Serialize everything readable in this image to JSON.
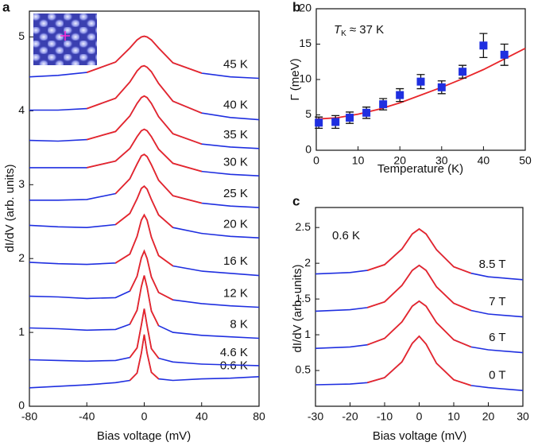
{
  "chart_data": [
    {
      "type": "line",
      "panel_label": "a",
      "xlabel": "Bias voltage (mV)",
      "ylabel": "dI/dV (arb. units)",
      "xlim": [
        -80,
        80
      ],
      "xticks": [
        -80,
        -40,
        0,
        40,
        80
      ],
      "ylim": [
        0,
        5.35
      ],
      "yticks": [
        0,
        1,
        2,
        3,
        4,
        5
      ],
      "color": "#1f2fe0",
      "fit_color": "#e8262a",
      "x": [
        -80,
        -60,
        -40,
        -20,
        -10,
        -5,
        -2,
        0,
        2,
        5,
        10,
        20,
        40,
        60,
        80
      ],
      "series": [
        {
          "name": "0.6 K",
          "values": [
            0.25,
            0.27,
            0.29,
            0.32,
            0.35,
            0.45,
            0.72,
            0.97,
            0.72,
            0.46,
            0.37,
            0.35,
            0.37,
            0.38,
            0.4
          ],
          "fit": [
            null,
            null,
            null,
            null,
            0.35,
            0.45,
            0.72,
            0.97,
            0.72,
            0.46,
            0.37,
            null,
            null,
            null,
            null
          ]
        },
        {
          "name": "4.6 K",
          "values": [
            0.63,
            0.62,
            0.61,
            0.62,
            0.66,
            0.79,
            1.1,
            1.32,
            1.09,
            0.78,
            0.65,
            0.6,
            0.57,
            0.56,
            0.55
          ],
          "fit": [
            null,
            null,
            null,
            null,
            0.66,
            0.79,
            1.1,
            1.32,
            1.09,
            0.78,
            0.65,
            null,
            null,
            null,
            null
          ]
        },
        {
          "name": "8 K",
          "values": [
            1.06,
            1.05,
            1.03,
            1.04,
            1.11,
            1.3,
            1.62,
            1.77,
            1.61,
            1.29,
            1.09,
            1.0,
            0.96,
            0.94,
            0.92
          ],
          "fit": [
            null,
            null,
            null,
            null,
            1.11,
            1.3,
            1.62,
            1.77,
            1.61,
            1.29,
            1.09,
            null,
            null,
            null,
            null
          ]
        },
        {
          "name": "12 K",
          "values": [
            1.49,
            1.48,
            1.46,
            1.47,
            1.56,
            1.76,
            2.01,
            2.1,
            2.0,
            1.75,
            1.54,
            1.44,
            1.39,
            1.36,
            1.34
          ],
          "fit": [
            null,
            null,
            null,
            null,
            1.56,
            1.76,
            2.01,
            2.1,
            2.0,
            1.75,
            1.54,
            1.44,
            null,
            null,
            null
          ]
        },
        {
          "name": "16 K",
          "values": [
            1.95,
            1.93,
            1.92,
            1.94,
            2.06,
            2.3,
            2.52,
            2.59,
            2.52,
            2.29,
            2.04,
            1.9,
            1.83,
            1.8,
            1.77
          ],
          "fit": [
            null,
            null,
            null,
            1.94,
            2.06,
            2.3,
            2.52,
            2.59,
            2.52,
            2.29,
            2.04,
            1.9,
            null,
            null,
            null
          ]
        },
        {
          "name": "20 K",
          "values": [
            2.45,
            2.43,
            2.42,
            2.46,
            2.61,
            2.81,
            2.95,
            2.98,
            2.94,
            2.8,
            2.59,
            2.42,
            2.34,
            2.3,
            2.28
          ],
          "fit": [
            null,
            null,
            null,
            2.46,
            2.61,
            2.81,
            2.95,
            2.98,
            2.94,
            2.8,
            2.59,
            2.42,
            null,
            null,
            null
          ]
        },
        {
          "name": "25 K",
          "values": [
            2.79,
            2.79,
            2.8,
            2.88,
            3.08,
            3.28,
            3.39,
            3.41,
            3.38,
            3.27,
            3.06,
            2.85,
            2.75,
            2.71,
            2.69
          ],
          "fit": [
            null,
            null,
            null,
            2.88,
            3.08,
            3.28,
            3.39,
            3.41,
            3.38,
            3.27,
            3.06,
            2.85,
            2.75,
            null,
            null
          ]
        },
        {
          "name": "30 K",
          "values": [
            3.23,
            3.23,
            3.23,
            3.32,
            3.49,
            3.65,
            3.73,
            3.75,
            3.73,
            3.65,
            3.48,
            3.29,
            3.18,
            3.14,
            3.12
          ],
          "fit": [
            null,
            null,
            3.23,
            3.32,
            3.49,
            3.65,
            3.73,
            3.75,
            3.73,
            3.65,
            3.48,
            3.29,
            3.18,
            null,
            null
          ]
        },
        {
          "name": "35 K",
          "values": [
            3.6,
            3.59,
            3.61,
            3.72,
            3.93,
            4.1,
            4.18,
            4.2,
            4.18,
            4.1,
            3.92,
            3.69,
            3.55,
            3.51,
            3.49
          ],
          "fit": [
            null,
            null,
            3.61,
            3.72,
            3.93,
            4.1,
            4.18,
            4.2,
            4.18,
            4.1,
            3.92,
            3.69,
            3.55,
            null,
            null
          ]
        },
        {
          "name": "40 K",
          "values": [
            4.01,
            4.01,
            4.03,
            4.17,
            4.39,
            4.54,
            4.6,
            4.61,
            4.59,
            4.53,
            4.37,
            4.13,
            3.97,
            3.91,
            3.88
          ],
          "fit": [
            null,
            null,
            4.03,
            4.17,
            4.39,
            4.54,
            4.6,
            4.61,
            4.59,
            4.53,
            4.37,
            4.13,
            3.97,
            null,
            null
          ]
        },
        {
          "name": "45 K",
          "values": [
            4.46,
            4.48,
            4.52,
            4.66,
            4.85,
            4.96,
            5.0,
            5.01,
            5.0,
            4.96,
            4.85,
            4.65,
            4.51,
            4.46,
            4.44
          ],
          "fit": [
            null,
            null,
            4.52,
            4.66,
            4.85,
            4.96,
            5.0,
            5.01,
            5.0,
            4.96,
            4.85,
            4.65,
            4.51,
            null,
            null
          ]
        }
      ]
    },
    {
      "type": "scatter",
      "panel_label": "b",
      "xlabel": "Temperature (K)",
      "ylabel": "Γ (meV)",
      "annotation": {
        "symbol": "T",
        "subscript": "K",
        "text": "≈ 37 K"
      },
      "xlim": [
        0,
        50
      ],
      "xticks": [
        0,
        10,
        20,
        30,
        40,
        50
      ],
      "ylim": [
        0,
        20
      ],
      "yticks": [
        0,
        5,
        10,
        15,
        20
      ],
      "color": "#1f2fe0",
      "fit_color": "#e8262a",
      "x": [
        0.6,
        4.6,
        8,
        12,
        16,
        20,
        25,
        30,
        35,
        40,
        45
      ],
      "values": [
        3.9,
        4.0,
        4.6,
        5.3,
        6.5,
        7.8,
        9.7,
        8.9,
        11.1,
        14.8,
        13.5
      ],
      "errors": [
        0.8,
        0.9,
        0.8,
        0.8,
        0.8,
        0.9,
        1.0,
        0.9,
        0.9,
        1.7,
        1.5
      ],
      "fit": {
        "x": [
          0,
          5,
          10,
          15,
          20,
          25,
          30,
          35,
          40,
          45,
          50
        ],
        "values": [
          4.4,
          4.6,
          5.1,
          5.8,
          6.7,
          7.8,
          8.9,
          10.1,
          11.4,
          12.9,
          14.4
        ]
      }
    },
    {
      "type": "line",
      "panel_label": "c",
      "xlabel": "Bias voltage (mV)",
      "ylabel": "dI/dV (arb. units)",
      "annotation": "0.6 K",
      "xlim": [
        -30,
        30
      ],
      "xticks": [
        -30,
        -20,
        -10,
        0,
        10,
        20,
        30
      ],
      "ylim": [
        0,
        2.78
      ],
      "yticks": [
        0.5,
        1,
        1.5,
        2,
        2.5
      ],
      "color": "#1f2fe0",
      "fit_color": "#e8262a",
      "x": [
        -30,
        -20,
        -15,
        -10,
        -5,
        -2,
        0,
        2,
        5,
        10,
        15,
        20,
        30
      ],
      "series": [
        {
          "name": "0 T",
          "values": [
            0.3,
            0.31,
            0.33,
            0.4,
            0.62,
            0.88,
            0.98,
            0.87,
            0.6,
            0.37,
            0.29,
            0.26,
            0.22
          ],
          "fit": [
            null,
            null,
            0.33,
            0.4,
            0.62,
            0.88,
            0.98,
            0.87,
            0.6,
            0.37,
            0.29,
            null,
            null
          ]
        },
        {
          "name": "6 T",
          "values": [
            0.81,
            0.83,
            0.86,
            0.95,
            1.18,
            1.4,
            1.47,
            1.4,
            1.17,
            0.93,
            0.83,
            0.79,
            0.75
          ],
          "fit": [
            null,
            null,
            0.86,
            0.95,
            1.18,
            1.4,
            1.47,
            1.4,
            1.17,
            0.93,
            0.83,
            null,
            null
          ]
        },
        {
          "name": "7 T",
          "values": [
            1.33,
            1.35,
            1.38,
            1.46,
            1.69,
            1.9,
            1.97,
            1.9,
            1.67,
            1.44,
            1.34,
            1.29,
            1.25
          ],
          "fit": [
            null,
            null,
            1.38,
            1.46,
            1.69,
            1.9,
            1.97,
            1.9,
            1.67,
            1.44,
            1.34,
            null,
            null
          ]
        },
        {
          "name": "8.5 T",
          "values": [
            1.85,
            1.87,
            1.9,
            1.98,
            2.2,
            2.41,
            2.48,
            2.41,
            2.19,
            1.95,
            1.86,
            1.81,
            1.77
          ],
          "fit": [
            null,
            null,
            1.9,
            1.98,
            2.2,
            2.41,
            2.48,
            2.41,
            2.19,
            1.95,
            1.86,
            null,
            null
          ]
        }
      ]
    }
  ]
}
